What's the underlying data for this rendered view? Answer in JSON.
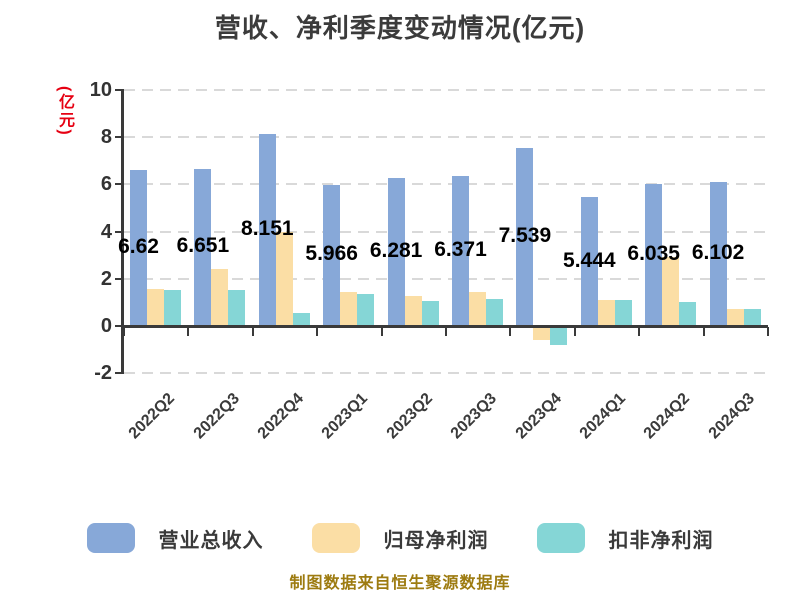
{
  "title": "营收、净利季度变动情况(亿元)",
  "footer": "制图数据来自恒生聚源数据库",
  "colors": {
    "revenue_bar": "#87A8D8",
    "net_profit_bar": "#FBDEA5",
    "non_recurring_bar": "#85D6D6",
    "title_text": "#3b3b3b",
    "axis_text": "#333333",
    "axis_line": "#3a3a3a",
    "gridline": "#d9d9d9",
    "y_label_red": "#e60012",
    "data_label": "#000000",
    "footer_gold": "#9d7b10",
    "background": "#ffffff"
  },
  "chart_data": {
    "type": "bar",
    "title": "营收、净利季度变动情况(亿元)",
    "xlabel": "",
    "ylabel": "(亿元)",
    "ylim": [
      -2,
      10
    ],
    "yticks": [
      10,
      8,
      6,
      4,
      2,
      0,
      -2
    ],
    "grid": true,
    "grid_style": "dashed",
    "legend_position": "bottom",
    "x_tick_rotation": 45,
    "categories": [
      "2022Q2",
      "2022Q3",
      "2022Q4",
      "2023Q1",
      "2023Q2",
      "2023Q3",
      "2023Q4",
      "2024Q1",
      "2024Q2",
      "2024Q3"
    ],
    "series": [
      {
        "name": "营业总收入",
        "color": "#87A8D8",
        "values": [
          6.62,
          6.651,
          8.151,
          5.966,
          6.281,
          6.371,
          7.539,
          5.444,
          6.035,
          6.102
        ],
        "data_labels": [
          "6.62",
          "6.651",
          "8.151",
          "5.966",
          "6.281",
          "6.371",
          "7.539",
          "5.444",
          "6.035",
          "6.102"
        ]
      },
      {
        "name": "归母净利润",
        "color": "#FBDEA5",
        "values": [
          1.55,
          2.4,
          4.0,
          1.45,
          1.28,
          1.45,
          -0.62,
          1.08,
          2.9,
          0.7
        ]
      },
      {
        "name": "扣非净利润",
        "color": "#85D6D6",
        "values": [
          1.5,
          1.5,
          0.55,
          1.35,
          1.05,
          1.15,
          -0.8,
          1.1,
          1.0,
          0.7
        ]
      }
    ]
  }
}
